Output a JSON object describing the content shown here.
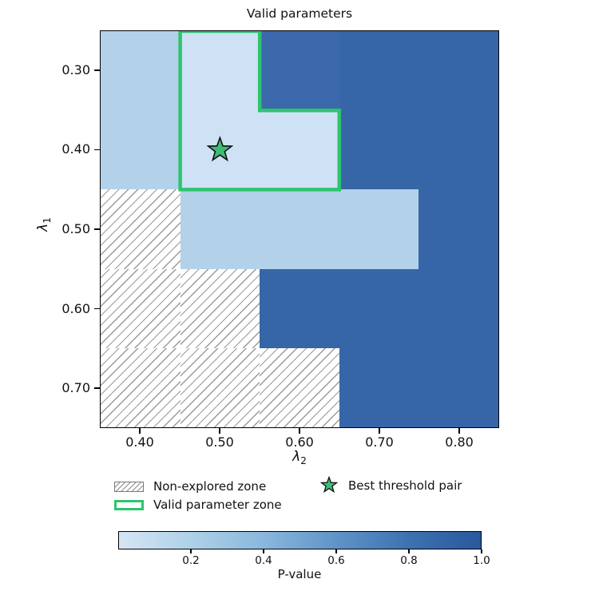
{
  "title": "Valid parameters",
  "axes": {
    "x": {
      "label_symbol": "λ",
      "label_sub": "2",
      "tick_labels": [
        "0.40",
        "0.50",
        "0.60",
        "0.70",
        "0.80"
      ]
    },
    "y": {
      "label_symbol": "λ",
      "label_sub": "1",
      "tick_labels": [
        "0.30",
        "0.40",
        "0.50",
        "0.60",
        "0.70"
      ]
    }
  },
  "legend": {
    "items": [
      {
        "label": "Non-explored zone",
        "marker": "hatched-rect"
      },
      {
        "label": "Valid parameter zone",
        "marker": "green-outline-rect"
      },
      {
        "label": "Best threshold pair",
        "marker": "green-star"
      }
    ]
  },
  "colorbar": {
    "label": "P-value",
    "tick_labels": [
      "0.2",
      "0.4",
      "0.6",
      "0.8",
      "1.0"
    ],
    "tick_values": [
      0.2,
      0.4,
      0.6,
      0.8,
      1.0
    ],
    "range": [
      0,
      1
    ]
  },
  "colors": {
    "palette": {
      "L": "#cfe1f5",
      "M": "#b3d2e9",
      "D1": "#3c68ac",
      "D": "#3766a8"
    },
    "hatch_line": "#9a9a9a",
    "valid_zone_green": "#2dc46e",
    "star_fill": "#3dbd74",
    "star_edge": "#111111",
    "colorbar_stops": [
      "#d6e5f4",
      "#aed1e7",
      "#8ab7dc",
      "#6094c8",
      "#3d72b0",
      "#2a589d"
    ]
  },
  "chart_data": {
    "type": "heatmap",
    "title": "Valid parameters",
    "xlabel": "λ2",
    "ylabel": "λ1",
    "x_values": [
      0.4,
      0.5,
      0.6,
      0.7,
      0.8
    ],
    "y_values": [
      0.3,
      0.4,
      0.5,
      0.6,
      0.7
    ],
    "x_range": [
      0.35,
      0.85
    ],
    "y_range": [
      0.25,
      0.75
    ],
    "x_ticks": [
      0.4,
      0.5,
      0.6,
      0.7,
      0.8
    ],
    "y_ticks": [
      0.3,
      0.4,
      0.5,
      0.6,
      0.7
    ],
    "cell_codes": [
      [
        "M",
        "L",
        "D1",
        "D",
        "D"
      ],
      [
        "M",
        "L",
        "L",
        "D",
        "D"
      ],
      [
        "H",
        "M",
        "M",
        "M",
        "D"
      ],
      [
        "H",
        "H",
        "D",
        "D",
        "D"
      ],
      [
        "H",
        "H",
        "H",
        "D",
        "D"
      ]
    ],
    "p_values_estimated": [
      [
        0.2,
        0.05,
        0.85,
        0.9,
        0.9
      ],
      [
        0.2,
        0.05,
        0.05,
        0.9,
        0.9
      ],
      [
        null,
        0.2,
        0.2,
        0.2,
        0.9
      ],
      [
        null,
        null,
        0.9,
        0.9,
        0.9
      ],
      [
        null,
        null,
        null,
        0.9,
        0.9
      ]
    ],
    "non_explored_code": "H",
    "valid_zone_cells": [
      [
        0.5,
        0.3
      ],
      [
        0.5,
        0.4
      ],
      [
        0.6,
        0.4
      ]
    ],
    "valid_zone_outline": [
      [
        0.45,
        0.25
      ],
      [
        0.55,
        0.25
      ],
      [
        0.55,
        0.35
      ],
      [
        0.65,
        0.35
      ],
      [
        0.65,
        0.45
      ],
      [
        0.45,
        0.45
      ]
    ],
    "best_threshold_pair": [
      0.5,
      0.4
    ],
    "colorbar": {
      "label": "P-value",
      "ticks": [
        0.2,
        0.4,
        0.6,
        0.8,
        1.0
      ],
      "range": [
        0,
        1
      ]
    },
    "legend_position": "below-plot",
    "grid": false
  }
}
